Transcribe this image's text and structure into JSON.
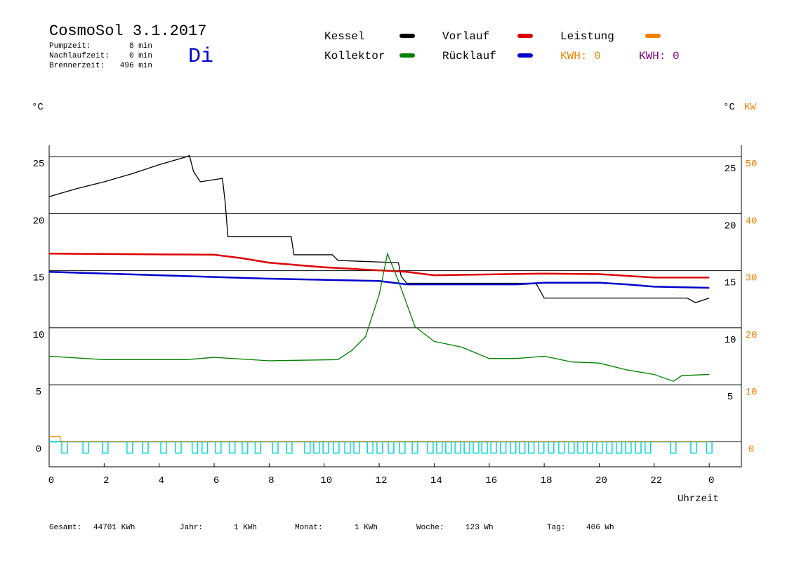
{
  "header": {
    "title": "CosmoSol 3.1.2017",
    "day": "Di",
    "stats": [
      {
        "label": "Pumpzeit:",
        "value": "8 min"
      },
      {
        "label": "Nachlaufzeit:",
        "value": "0 min"
      },
      {
        "label": "Brennerzeit:",
        "value": "496 min"
      }
    ]
  },
  "chart_data": {
    "type": "line",
    "y_unit": "°C",
    "y2_unit_left": "°C",
    "y2_unit": "KW",
    "x_label": "Uhrzeit",
    "xlim": [
      0,
      25.17
    ],
    "ylim": [
      -2.2,
      26
    ],
    "y2lim": [
      -4.4,
      52
    ],
    "xticks": [
      0,
      2,
      4,
      6,
      8,
      10,
      12,
      14,
      16,
      18,
      20,
      22,
      {
        "value": 24,
        "label": "0"
      }
    ],
    "yticks": [
      0,
      5,
      10,
      15,
      20,
      25
    ],
    "inner_yticks": [
      5,
      10,
      15,
      20,
      25
    ],
    "y2ticks": [
      0,
      10,
      20,
      30,
      40,
      50
    ],
    "series": [
      {
        "name": "Kessel",
        "color": "#000000",
        "x": [
          0,
          1,
          2,
          3,
          4,
          5,
          5.1,
          5.25,
          5.5,
          6.3,
          6.4,
          6.5,
          8.8,
          8.9,
          10.3,
          10.5,
          12.7,
          12.8,
          13,
          17.7,
          18,
          23.2,
          23.5,
          24
        ],
        "values": [
          21.5,
          22.2,
          22.8,
          23.5,
          24.3,
          25,
          25.1,
          23.7,
          22.8,
          23.1,
          21,
          18,
          18,
          16.4,
          16.4,
          15.9,
          15.7,
          14.5,
          13.9,
          13.9,
          12.6,
          12.6,
          12.2,
          12.6
        ]
      },
      {
        "name": "Vorlauf",
        "color": "#dd0000",
        "x": [
          0,
          6,
          7,
          8,
          10,
          13,
          14,
          18,
          20,
          22,
          24
        ],
        "values": [
          16.5,
          16.4,
          16.1,
          15.7,
          15.3,
          14.9,
          14.6,
          14.75,
          14.7,
          14.4,
          14.4
        ]
      },
      {
        "name": "Rücklauf",
        "color": "#0000cc",
        "x": [
          0,
          4,
          8,
          12,
          13,
          17,
          18,
          20,
          21,
          22,
          24
        ],
        "values": [
          14.9,
          14.6,
          14.3,
          14.1,
          13.8,
          13.8,
          13.95,
          13.95,
          13.8,
          13.6,
          13.5
        ]
      },
      {
        "name": "Kollektor",
        "color": "#008000",
        "x": [
          0,
          2,
          5,
          6,
          8,
          10.5,
          11,
          11.5,
          12,
          12.3,
          12.7,
          13.3,
          14,
          15,
          16,
          17,
          18,
          19,
          20,
          21,
          22,
          22.7,
          23,
          24
        ],
        "values": [
          7.5,
          7.2,
          7.2,
          7.4,
          7.1,
          7.2,
          8,
          9.2,
          12.9,
          16.5,
          14.1,
          10.1,
          8.8,
          8.3,
          7.3,
          7.3,
          7.5,
          7,
          6.9,
          6.3,
          5.9,
          5.3,
          5.8,
          5.9
        ]
      },
      {
        "name": "Leistung",
        "color": "#f08000",
        "axis": "y2",
        "x": [
          0,
          0.4,
          0.4,
          24
        ],
        "values": [
          0.9,
          0.9,
          0,
          0
        ]
      }
    ],
    "kwh_labels": [
      {
        "text": "KWH: 0",
        "color": "#f08000"
      },
      {
        "text": "KWH: 0",
        "color": "#800080"
      }
    ],
    "pump": {
      "color": "#00d8d8",
      "high": 0,
      "low": -1,
      "duration": 0.2,
      "starts": [
        0.46,
        1.23,
        1.94,
        2.83,
        3.4,
        4.06,
        4.6,
        5.2,
        5.56,
        6.05,
        6.56,
        7.02,
        7.49,
        8.12,
        8.63,
        9.29,
        9.62,
        9.96,
        10.34,
        10.75,
        11.08,
        11.57,
        11.92,
        12.33,
        12.74,
        13.2,
        13.76,
        14.09,
        14.42,
        14.76,
        15.09,
        15.42,
        15.73,
        16.06,
        16.41,
        16.77,
        17.1,
        17.43,
        17.79,
        18.15,
        18.53,
        18.89,
        19.22,
        19.56,
        19.91,
        20.27,
        20.62,
        20.96,
        21.32,
        21.67,
        22.59,
        23.33,
        23.9
      ]
    }
  },
  "footer": [
    {
      "label": "Gesamt:",
      "value": "44701 KWh"
    },
    {
      "label": "Jahr:",
      "value": "1 KWh"
    },
    {
      "label": "Monat:",
      "value": "1 KWh"
    },
    {
      "label": "Woche:",
      "value": "123 Wh"
    },
    {
      "label": "Tag:",
      "value": "406 Wh"
    }
  ]
}
